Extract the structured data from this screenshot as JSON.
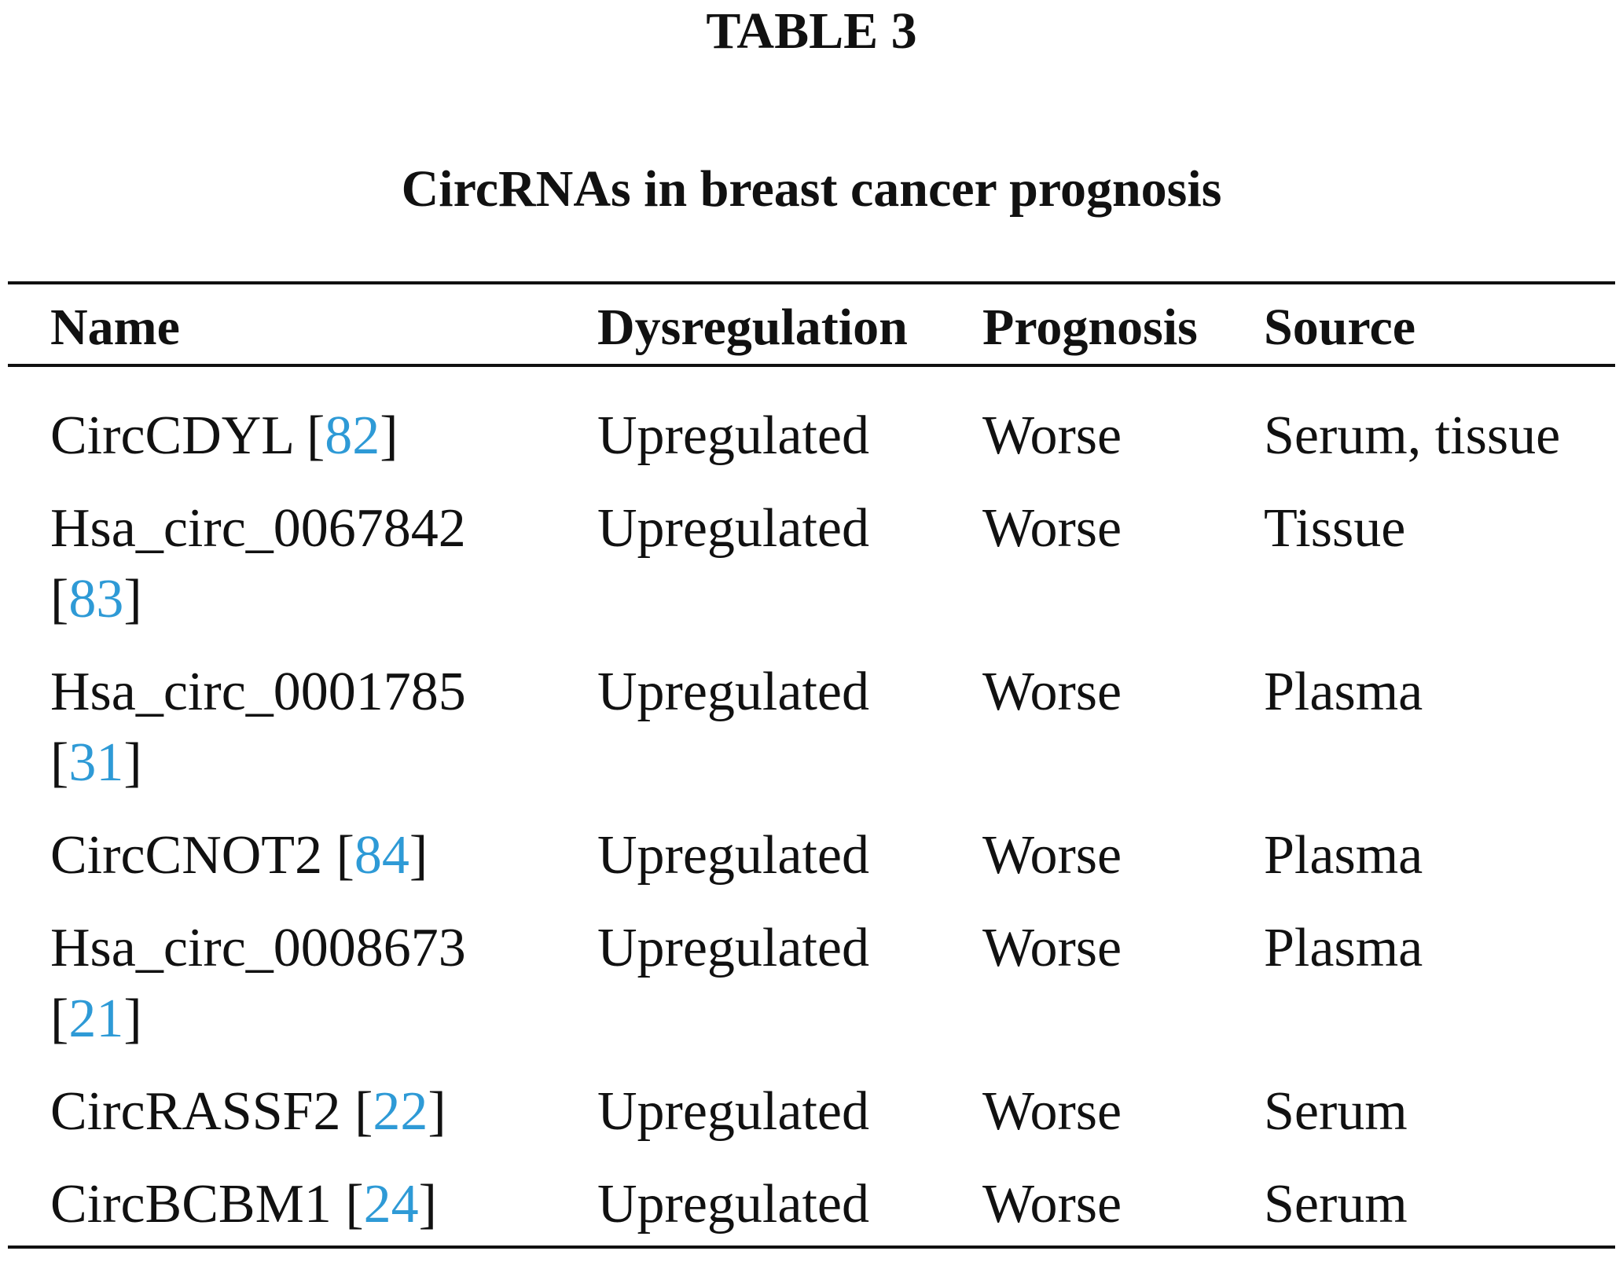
{
  "table": {
    "label": "TABLE 3",
    "caption": "CircRNAs in breast cancer prognosis",
    "headers": {
      "name": "Name",
      "dysregulation": "Dysregulation",
      "prognosis": "Prognosis",
      "source": "Source"
    },
    "rows": [
      {
        "name": "CircCDYL",
        "ref": "82",
        "dysregulation": "Upregulated",
        "prognosis": "Worse",
        "source": "Serum, tissue"
      },
      {
        "name": "Hsa_circ_0067842",
        "ref": "83",
        "dysregulation": "Upregulated",
        "prognosis": "Worse",
        "source": "Tissue"
      },
      {
        "name": "Hsa_circ_0001785",
        "ref": "31",
        "dysregulation": "Upregulated",
        "prognosis": "Worse",
        "source": "Plasma"
      },
      {
        "name": "CircCNOT2",
        "ref": "84",
        "dysregulation": "Upregulated",
        "prognosis": "Worse",
        "source": "Plasma"
      },
      {
        "name": "Hsa_circ_0008673",
        "ref": "21",
        "dysregulation": "Upregulated",
        "prognosis": "Worse",
        "source": "Plasma"
      },
      {
        "name": "CircRASSF2",
        "ref": "22",
        "dysregulation": "Upregulated",
        "prognosis": "Worse",
        "source": "Serum"
      },
      {
        "name": "CircBCBM1",
        "ref": "24",
        "dysregulation": "Upregulated",
        "prognosis": "Worse",
        "source": "Serum"
      }
    ]
  },
  "colors": {
    "text": "#111111",
    "reference_link": "#2e9ad6",
    "rules": "#111111"
  }
}
